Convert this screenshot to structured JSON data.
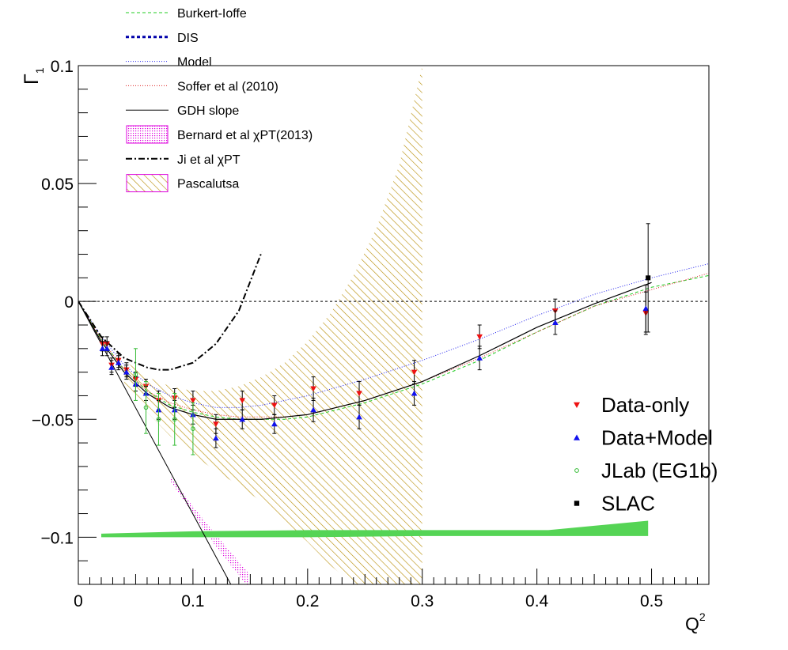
{
  "chart_data": {
    "type": "scatter",
    "title": "",
    "xlabel": "Q",
    "xlabel_sup": "2",
    "ylabel": "Γ",
    "ylabel_sub": "1",
    "xlim": [
      0,
      0.55
    ],
    "ylim": [
      -0.12,
      0.1
    ],
    "x_ticks": [
      {
        "value": 0,
        "label": "0"
      },
      {
        "value": 0.1,
        "label": "0.1"
      },
      {
        "value": 0.2,
        "label": "0.2"
      },
      {
        "value": 0.3,
        "label": "0.3"
      },
      {
        "value": 0.4,
        "label": "0.4"
      },
      {
        "value": 0.5,
        "label": "0.5"
      }
    ],
    "y_ticks": [
      {
        "value": 0.1,
        "label": "0.1"
      },
      {
        "value": 0.05,
        "label": "0.05"
      },
      {
        "value": 0,
        "label": "0"
      },
      {
        "value": -0.05,
        "label": "−0.05"
      },
      {
        "value": -0.1,
        "label": "−0.1"
      }
    ],
    "legend_top": [
      {
        "label": "Burkert-Ioffe",
        "style": "line",
        "color": "#22cc22",
        "dash": "4,3",
        "width": 1
      },
      {
        "label": "DIS",
        "style": "line",
        "color": "#0000aa",
        "dash": "4,3",
        "width": 3
      },
      {
        "label": "Model",
        "style": "line",
        "color": "#2222ee",
        "dash": "1,2",
        "width": 1
      },
      {
        "label": "Soffer et al (2010)",
        "style": "line",
        "color": "#dd2222",
        "dash": "1,2",
        "width": 1
      },
      {
        "label": "GDH slope",
        "style": "line",
        "color": "#000000",
        "dash": "",
        "width": 1
      },
      {
        "label": "Bernard et al χPT(2013)",
        "style": "dotbox",
        "color": "#dd00dd"
      },
      {
        "label": "Ji et al χPT",
        "style": "line",
        "color": "#000000",
        "dash": "8,3,2,3",
        "width": 2
      },
      {
        "label": "Pascalutsa",
        "style": "hatchbox",
        "color": "#dd00dd"
      }
    ],
    "legend_points": [
      {
        "label": "Data-only",
        "marker": "triangle-down",
        "color": "#ee1111"
      },
      {
        "label": "Data+Model",
        "marker": "triangle-up",
        "color": "#1111ee"
      },
      {
        "label": "JLab (EG1b)",
        "marker": "circle-open",
        "color": "#33bb33"
      },
      {
        "label": "SLAC",
        "marker": "square",
        "color": "#000000"
      }
    ],
    "series": [
      {
        "name": "Data-only",
        "color": "#ee1111",
        "marker": "triangle-down",
        "points": [
          {
            "x": 0.021,
            "y": -0.018,
            "err": 0.003
          },
          {
            "x": 0.025,
            "y": -0.018,
            "err": 0.003
          },
          {
            "x": 0.029,
            "y": -0.027,
            "err": 0.003
          },
          {
            "x": 0.035,
            "y": -0.025,
            "err": 0.003
          },
          {
            "x": 0.042,
            "y": -0.029,
            "err": 0.003
          },
          {
            "x": 0.05,
            "y": -0.033,
            "err": 0.003
          },
          {
            "x": 0.059,
            "y": -0.036,
            "err": 0.003
          },
          {
            "x": 0.07,
            "y": -0.042,
            "err": 0.004
          },
          {
            "x": 0.084,
            "y": -0.041,
            "err": 0.004
          },
          {
            "x": 0.1,
            "y": -0.042,
            "err": 0.004
          },
          {
            "x": 0.12,
            "y": -0.052,
            "err": 0.004
          },
          {
            "x": 0.143,
            "y": -0.042,
            "err": 0.004
          },
          {
            "x": 0.171,
            "y": -0.044,
            "err": 0.004
          },
          {
            "x": 0.205,
            "y": -0.037,
            "err": 0.005
          },
          {
            "x": 0.245,
            "y": -0.039,
            "err": 0.005
          },
          {
            "x": 0.293,
            "y": -0.03,
            "err": 0.005
          },
          {
            "x": 0.35,
            "y": -0.015,
            "err": 0.005
          },
          {
            "x": 0.416,
            "y": -0.004,
            "err": 0.005
          },
          {
            "x": 0.495,
            "y": -0.005,
            "err": 0.009
          }
        ]
      },
      {
        "name": "Data+Model",
        "color": "#1111ee",
        "marker": "triangle-up",
        "points": [
          {
            "x": 0.021,
            "y": -0.02,
            "err": 0.003
          },
          {
            "x": 0.025,
            "y": -0.02,
            "err": 0.003
          },
          {
            "x": 0.029,
            "y": -0.028,
            "err": 0.003
          },
          {
            "x": 0.035,
            "y": -0.026,
            "err": 0.003
          },
          {
            "x": 0.042,
            "y": -0.03,
            "err": 0.003
          },
          {
            "x": 0.05,
            "y": -0.035,
            "err": 0.003
          },
          {
            "x": 0.059,
            "y": -0.039,
            "err": 0.003
          },
          {
            "x": 0.07,
            "y": -0.046,
            "err": 0.004
          },
          {
            "x": 0.084,
            "y": -0.046,
            "err": 0.004
          },
          {
            "x": 0.1,
            "y": -0.048,
            "err": 0.004
          },
          {
            "x": 0.12,
            "y": -0.058,
            "err": 0.004
          },
          {
            "x": 0.143,
            "y": -0.05,
            "err": 0.004
          },
          {
            "x": 0.171,
            "y": -0.052,
            "err": 0.004
          },
          {
            "x": 0.205,
            "y": -0.046,
            "err": 0.005
          },
          {
            "x": 0.245,
            "y": -0.049,
            "err": 0.005
          },
          {
            "x": 0.293,
            "y": -0.039,
            "err": 0.005
          },
          {
            "x": 0.35,
            "y": -0.024,
            "err": 0.005
          },
          {
            "x": 0.416,
            "y": -0.009,
            "err": 0.005
          },
          {
            "x": 0.495,
            "y": -0.003,
            "err": 0.01
          }
        ]
      },
      {
        "name": "JLab (EG1b)",
        "color": "#33bb33",
        "marker": "circle-open",
        "points": [
          {
            "x": 0.05,
            "y": -0.031,
            "err": 0.011
          },
          {
            "x": 0.059,
            "y": -0.045,
            "err": 0.011
          },
          {
            "x": 0.07,
            "y": -0.05,
            "err": 0.011
          },
          {
            "x": 0.084,
            "y": -0.05,
            "err": 0.011
          },
          {
            "x": 0.1,
            "y": -0.054,
            "err": 0.011
          }
        ]
      },
      {
        "name": "SLAC",
        "color": "#000000",
        "marker": "square",
        "points": [
          {
            "x": 0.497,
            "y": 0.01,
            "err": 0.023
          }
        ]
      }
    ],
    "curves": [
      {
        "name": "Burkert-Ioffe",
        "color": "#22cc22",
        "dash": "4,3",
        "width": 1,
        "x": [
          0,
          0.02,
          0.04,
          0.06,
          0.08,
          0.1,
          0.12,
          0.14,
          0.16,
          0.18,
          0.2,
          0.25,
          0.3,
          0.35,
          0.4,
          0.45,
          0.5,
          0.55
        ],
        "y": [
          0,
          -0.016,
          -0.029,
          -0.038,
          -0.044,
          -0.047,
          -0.049,
          -0.05,
          -0.05,
          -0.05,
          -0.049,
          -0.043,
          -0.035,
          -0.025,
          -0.013,
          -0.002,
          0.006,
          0.011
        ]
      },
      {
        "name": "DIS",
        "color": "#0000aa",
        "dash": "4,3",
        "width": 3,
        "x": [],
        "y": []
      },
      {
        "name": "Model",
        "color": "#2222ee",
        "dash": "1,2",
        "width": 1,
        "x": [
          0,
          0.02,
          0.04,
          0.06,
          0.08,
          0.1,
          0.12,
          0.14,
          0.16,
          0.18,
          0.2,
          0.25,
          0.3,
          0.35,
          0.4,
          0.45,
          0.5,
          0.55
        ],
        "y": [
          0,
          -0.015,
          -0.027,
          -0.035,
          -0.04,
          -0.043,
          -0.045,
          -0.045,
          -0.044,
          -0.042,
          -0.04,
          -0.033,
          -0.025,
          -0.016,
          -0.006,
          0.003,
          0.01,
          0.016
        ]
      },
      {
        "name": "Soffer et al (2010)",
        "color": "#dd2222",
        "dash": "1,2",
        "width": 1,
        "x": [
          0,
          0.02,
          0.04,
          0.06,
          0.08,
          0.1,
          0.12,
          0.14,
          0.16,
          0.18,
          0.2,
          0.25,
          0.3,
          0.35,
          0.4,
          0.45,
          0.5,
          0.55
        ],
        "y": [
          0,
          -0.016,
          -0.029,
          -0.038,
          -0.043,
          -0.046,
          -0.048,
          -0.049,
          -0.049,
          -0.049,
          -0.048,
          -0.042,
          -0.034,
          -0.024,
          -0.013,
          -0.002,
          0.005,
          0.012
        ]
      },
      {
        "name": "data model line",
        "color": "#000000",
        "dash": "",
        "width": 1.2,
        "x": [
          0,
          0.02,
          0.04,
          0.06,
          0.08,
          0.1,
          0.12,
          0.14,
          0.16,
          0.18,
          0.2,
          0.25,
          0.3,
          0.35,
          0.4,
          0.45,
          0.5
        ],
        "y": [
          0,
          -0.017,
          -0.03,
          -0.039,
          -0.045,
          -0.048,
          -0.05,
          -0.05,
          -0.05,
          -0.049,
          -0.048,
          -0.042,
          -0.034,
          -0.023,
          -0.011,
          -0.001,
          0.008
        ]
      },
      {
        "name": "GDH slope",
        "color": "#000000",
        "dash": "",
        "width": 1,
        "x": [
          0,
          0.133
        ],
        "y": [
          0,
          -0.12
        ]
      },
      {
        "name": "Ji et al χPT",
        "color": "#000000",
        "dash": "8,3,2,3",
        "width": 2,
        "x": [
          0,
          0.02,
          0.04,
          0.06,
          0.07,
          0.08,
          0.1,
          0.12,
          0.14,
          0.16
        ],
        "y": [
          0,
          -0.015,
          -0.024,
          -0.028,
          -0.029,
          -0.029,
          -0.026,
          -0.018,
          -0.004,
          0.021
        ]
      },
      {
        "name": "zero line",
        "color": "#000000",
        "dash": "3,3",
        "width": 1,
        "x": [
          0,
          0.55
        ],
        "y": [
          0,
          0
        ]
      }
    ],
    "bands": [
      {
        "name": "Pascalutsa",
        "color": "#b58a00",
        "pattern": "hatch",
        "x": [
          0.04,
          0.06,
          0.08,
          0.1,
          0.12,
          0.14,
          0.16,
          0.18,
          0.2,
          0.22,
          0.24,
          0.26,
          0.28,
          0.3
        ],
        "upper": [
          -0.025,
          -0.032,
          -0.036,
          -0.038,
          -0.038,
          -0.036,
          -0.032,
          -0.026,
          -0.017,
          -0.005,
          0.011,
          0.031,
          0.058,
          0.1
        ],
        "lower": [
          -0.035,
          -0.047,
          -0.057,
          -0.065,
          -0.072,
          -0.078,
          -0.085,
          -0.093,
          -0.102,
          -0.112,
          -0.12,
          -0.12,
          -0.12,
          -0.12
        ]
      },
      {
        "name": "Bernard et al χPT(2013)",
        "color": "#dd00dd",
        "pattern": "dots",
        "x": [
          0.08,
          0.1,
          0.12,
          0.148
        ],
        "upper": [
          -0.074,
          -0.087,
          -0.099,
          -0.115
        ],
        "lower": [
          -0.076,
          -0.09,
          -0.104,
          -0.121
        ]
      },
      {
        "name": "systematic",
        "color": "#55d455",
        "pattern": "solid",
        "x": [
          0.02,
          0.1,
          0.2,
          0.3,
          0.41,
          0.497
        ],
        "upper": [
          -0.0985,
          -0.0975,
          -0.097,
          -0.097,
          -0.097,
          -0.093
        ],
        "lower": [
          -0.1,
          -0.1,
          -0.1,
          -0.0995,
          -0.0995,
          -0.0995
        ]
      }
    ]
  }
}
